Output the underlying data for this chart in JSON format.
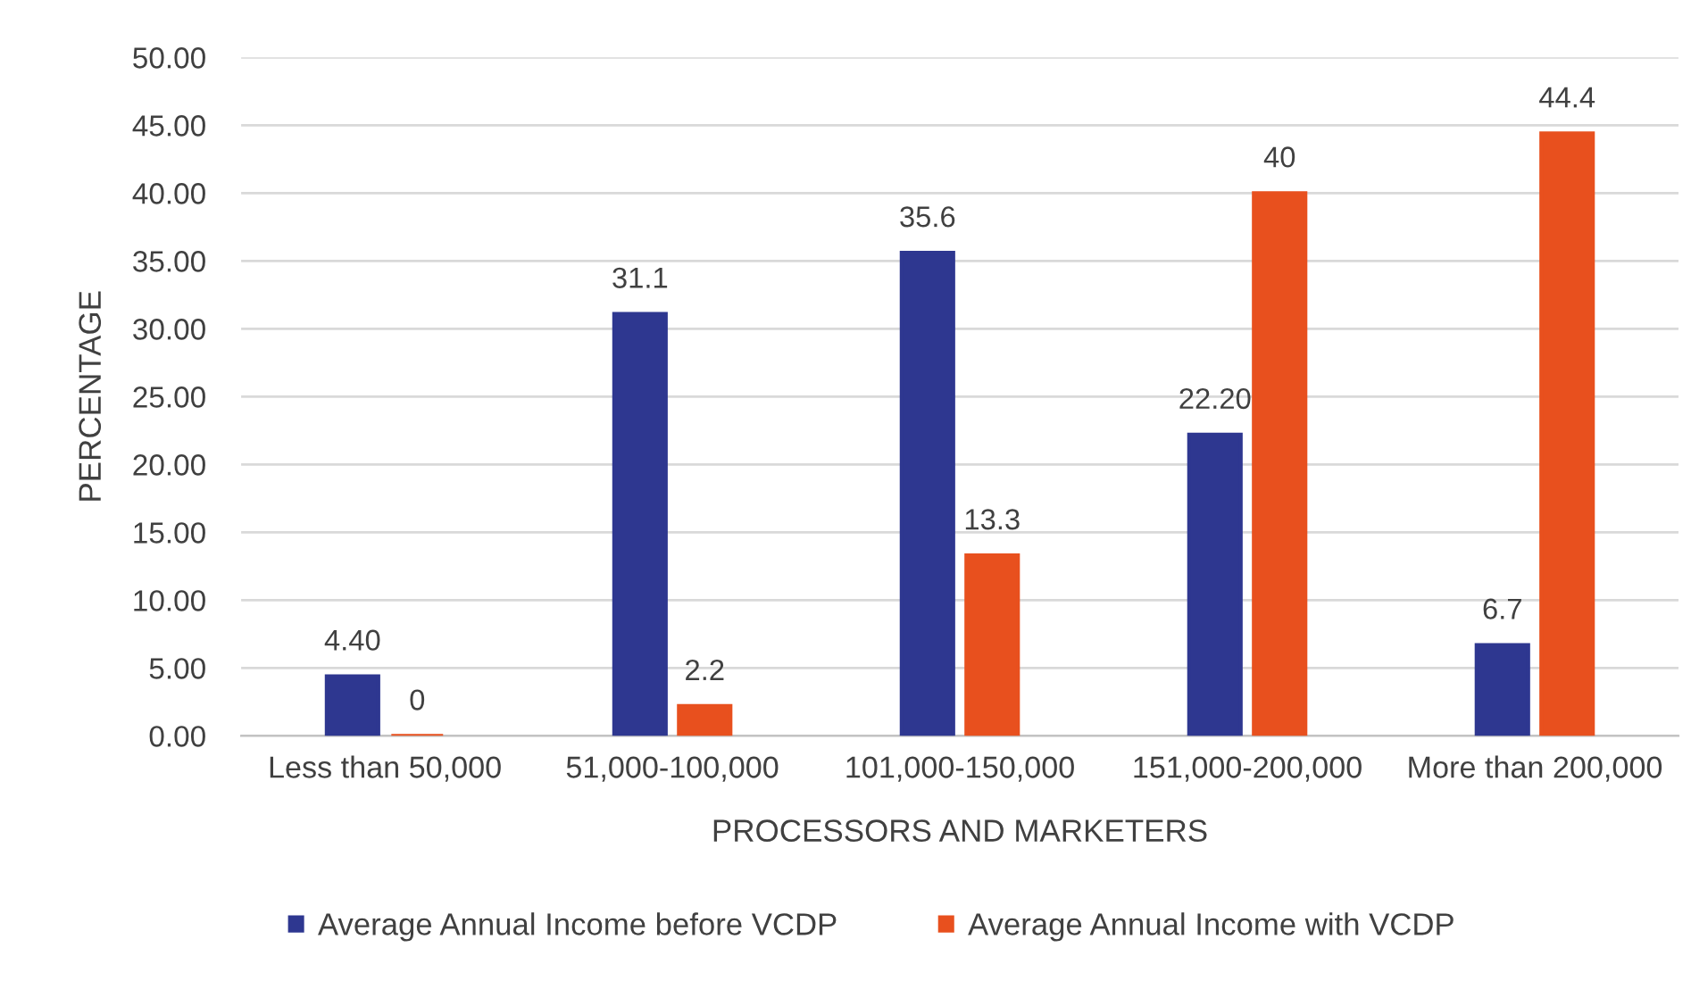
{
  "chart_data": {
    "type": "bar",
    "xlabel": "PROCESSORS AND MARKETERS",
    "ylabel": "PERCENTAGE",
    "categories": [
      "Less than 50,000",
      "51,000-100,000",
      "101,000-150,000",
      "151,000-200,000",
      "More than 200,000"
    ],
    "series": [
      {
        "name": "Average Annual Income before VCDP",
        "color": "#2e3790",
        "values": [
          4.4,
          31.1,
          35.6,
          22.2,
          6.7
        ],
        "value_labels": [
          "4.40",
          "31.1",
          "35.6",
          "22.20",
          "6.7"
        ]
      },
      {
        "name": "Average Annual Income with VCDP",
        "color": "#e8501e",
        "values": [
          0,
          2.2,
          13.3,
          40,
          44.4
        ],
        "value_labels": [
          "0",
          "2.2",
          "13.3",
          "40",
          "44.4"
        ]
      }
    ],
    "ylim": [
      0,
      50
    ],
    "yticks": [
      {
        "value": 0,
        "label": "0.00"
      },
      {
        "value": 5,
        "label": "5.00"
      },
      {
        "value": 10,
        "label": "10.00"
      },
      {
        "value": 15,
        "label": "15.00"
      },
      {
        "value": 20,
        "label": "20.00"
      },
      {
        "value": 25,
        "label": "25.00"
      },
      {
        "value": 30,
        "label": "30.00"
      },
      {
        "value": 35,
        "label": "35.00"
      },
      {
        "value": 40,
        "label": "40.00"
      },
      {
        "value": 45,
        "label": "45.00"
      },
      {
        "value": 50,
        "label": "50.00"
      }
    ],
    "grid": "y",
    "legend": "bottom"
  }
}
